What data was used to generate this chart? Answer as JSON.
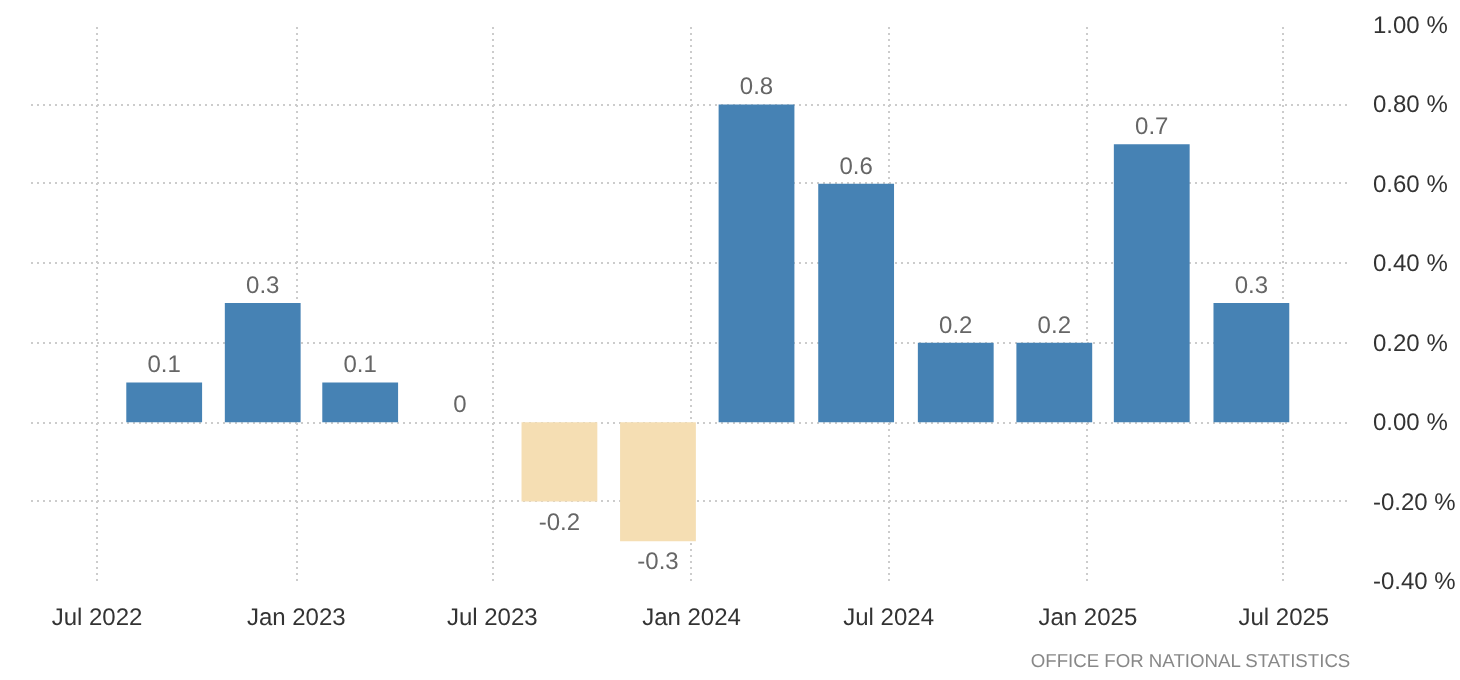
{
  "chart_data": {
    "type": "bar",
    "x": [
      "2022-09",
      "2022-12",
      "2023-03",
      "2023-06",
      "2023-09",
      "2023-12",
      "2024-03",
      "2024-06",
      "2024-09",
      "2024-12",
      "2025-03",
      "2025-06"
    ],
    "values": [
      0.1,
      0.3,
      0.1,
      0,
      -0.2,
      -0.3,
      0.8,
      0.6,
      0.2,
      0.2,
      0.7,
      0.3
    ],
    "colors": [
      "#4682b4",
      "#4682b4",
      "#4682b4",
      "#4682b4",
      "#f5deb3",
      "#f5deb3",
      "#4682b4",
      "#4682b4",
      "#4682b4",
      "#4682b4",
      "#4682b4",
      "#4682b4"
    ],
    "data_labels": true,
    "xlim": [
      "2022-05-01",
      "2025-09-01"
    ],
    "xticks": [
      {
        "value": "2022-07",
        "label": "Jul 2022"
      },
      {
        "value": "2023-01",
        "label": "Jan 2023"
      },
      {
        "value": "2023-07",
        "label": "Jul 2023"
      },
      {
        "value": "2024-01",
        "label": "Jan 2024"
      },
      {
        "value": "2024-07",
        "label": "Jul 2024"
      },
      {
        "value": "2025-01",
        "label": "Jan 2025"
      },
      {
        "value": "2025-07",
        "label": "Jul 2025"
      }
    ],
    "ylim": [
      -0.4,
      1.0
    ],
    "yticks": [
      {
        "value": -0.4,
        "label": "-0.40 %"
      },
      {
        "value": -0.2,
        "label": "-0.20 %"
      },
      {
        "value": 0,
        "label": "0.00 %"
      },
      {
        "value": 0.2,
        "label": "0.20 %"
      },
      {
        "value": 0.4,
        "label": "0.40 %"
      },
      {
        "value": 0.6,
        "label": "0.60 %"
      },
      {
        "value": 0.8,
        "label": "0.80 %"
      },
      {
        "value": 1.0,
        "label": "1.00 %"
      }
    ],
    "grid": true,
    "annotations": [
      "OFFICE FOR NATIONAL STATISTICS"
    ]
  }
}
